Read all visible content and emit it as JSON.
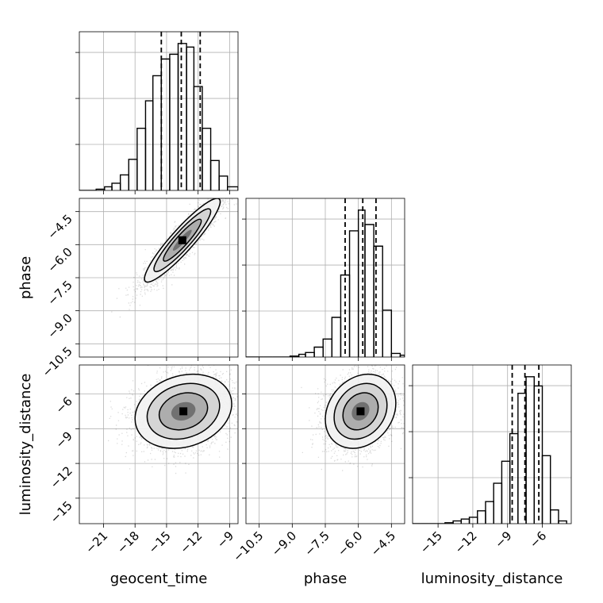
{
  "chart_data": {
    "type": "corner",
    "grid": true,
    "parameters": [
      "geocent_time",
      "phase",
      "luminosity_distance"
    ],
    "ranges": {
      "geocent_time": [
        -23.3,
        -8.2
      ],
      "phase": [
        -11.1,
        -3.9
      ],
      "luminosity_distance": [
        -17.2,
        -3.5
      ]
    },
    "ticks": {
      "geocent_time": [
        "-21",
        "-18",
        "-15",
        "-12",
        "-9"
      ],
      "phase": [
        "-10.5",
        "-9.0",
        "-7.5",
        "-6.0",
        "-4.5"
      ],
      "luminosity_distance": [
        "-15",
        "-12",
        "-9",
        "-6"
      ]
    },
    "tick_values": {
      "geocent_time": [
        -21,
        -18,
        -15,
        -12,
        -9
      ],
      "phase": [
        -10.5,
        -9.0,
        -7.5,
        -6.0,
        -4.5
      ],
      "luminosity_distance": [
        -15,
        -12,
        -9,
        -6
      ]
    },
    "quantiles": {
      "geocent_time": [
        -15.5,
        -13.6,
        -11.8
      ],
      "phase": [
        -6.6,
        -5.8,
        -5.2
      ],
      "luminosity_distance": [
        -8.6,
        -7.5,
        -6.3
      ]
    },
    "histograms": {
      "geocent_time": {
        "edges": [
          -23.3,
          -22.5,
          -21.7,
          -20.9,
          -20.2,
          -19.4,
          -18.6,
          -17.8,
          -17.0,
          -16.3,
          -15.5,
          -14.7,
          -13.9,
          -13.1,
          -12.4,
          -11.6,
          -10.8,
          -10.0,
          -9.2,
          -8.2
        ],
        "counts": [
          0,
          0,
          1,
          3,
          6,
          13,
          26,
          52,
          75,
          96,
          110,
          114,
          123,
          120,
          87,
          52,
          25,
          12,
          3
        ]
      },
      "phase": {
        "edges": [
          -11.1,
          -10.7,
          -10.3,
          -9.9,
          -9.5,
          -9.1,
          -8.7,
          -8.4,
          -8.0,
          -7.6,
          -7.2,
          -6.8,
          -6.4,
          -6.0,
          -5.7,
          -5.3,
          -4.9,
          -4.5,
          -4.1,
          -3.9
        ],
        "counts": [
          0,
          0,
          0,
          0,
          0,
          1,
          3,
          5,
          11,
          20,
          44,
          91,
          140,
          163,
          147,
          123,
          52,
          4,
          2
        ]
      },
      "luminosity_distance": {
        "edges": [
          -17.2,
          -16.5,
          -15.8,
          -15.1,
          -14.4,
          -13.7,
          -13.0,
          -12.3,
          -11.6,
          -10.9,
          -10.2,
          -9.5,
          -8.8,
          -8.1,
          -7.4,
          -6.7,
          -6.0,
          -5.3,
          -4.6,
          -3.9
        ],
        "counts": [
          0,
          0,
          0,
          0,
          1,
          3,
          5,
          7,
          14,
          24,
          44,
          68,
          98,
          142,
          160,
          150,
          74,
          15,
          3
        ]
      }
    },
    "pairs": [
      {
        "x": "geocent_time",
        "y": "phase",
        "center": [
          -13.5,
          -5.8
        ],
        "sd": [
          1.8,
          0.95
        ],
        "corr": 0.92
      },
      {
        "x": "geocent_time",
        "y": "luminosity_distance",
        "center": [
          -13.4,
          -7.5
        ],
        "sd": [
          2.3,
          1.6
        ],
        "corr": 0.2
      },
      {
        "x": "phase",
        "y": "luminosity_distance",
        "center": [
          -5.9,
          -7.5
        ],
        "sd": [
          0.8,
          1.6
        ],
        "corr": 0.22
      }
    ],
    "contour_levels_sigma": [
      0.5,
      1.0,
      1.5,
      2.0
    ]
  },
  "labels": {
    "x0": "geocent_time",
    "x1": "phase",
    "x2": "luminosity_distance",
    "y1": "phase",
    "y2": "luminosity_distance"
  }
}
